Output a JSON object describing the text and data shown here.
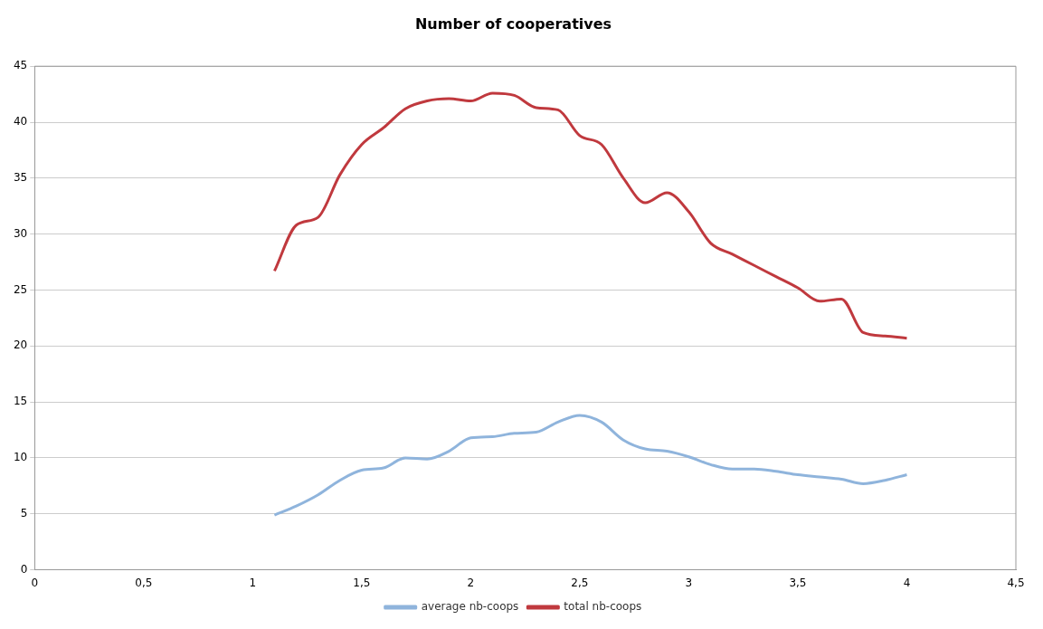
{
  "chart_data": {
    "type": "line",
    "title": "Number of cooperatives",
    "x": [
      1.1,
      1.2,
      1.3,
      1.4,
      1.5,
      1.6,
      1.7,
      1.8,
      1.9,
      2.0,
      2.1,
      2.2,
      2.3,
      2.4,
      2.5,
      2.6,
      2.7,
      2.8,
      2.9,
      3.0,
      3.1,
      3.2,
      3.3,
      3.4,
      3.5,
      3.6,
      3.7,
      3.8,
      3.9,
      4.0
    ],
    "series": [
      {
        "name": "average nb-coops",
        "color": "#8fb4dc",
        "values": [
          4.9,
          5.7,
          6.7,
          8,
          8.9,
          9.1,
          10,
          9.9,
          10.6,
          11.8,
          11.9,
          12.2,
          12.3,
          13.2,
          13.8,
          13.2,
          11.6,
          10.8,
          10.6,
          10.1,
          9.4,
          9,
          9,
          8.8,
          8.5,
          8.3,
          8.1,
          7.7,
          8,
          8.5
        ]
      },
      {
        "name": "total nb-coops",
        "color": "#c0393e",
        "values": [
          26.7,
          30.8,
          31.5,
          35.3,
          38,
          39.5,
          41.2,
          41.9,
          42.1,
          41.9,
          42.6,
          42.4,
          41.3,
          41.1,
          38.8,
          38,
          35,
          32.8,
          33.7,
          32,
          29.2,
          28.2,
          27.2,
          26.2,
          25.2,
          24,
          24.2,
          21.2,
          20.9,
          20.7
        ]
      }
    ],
    "xlim": [
      0,
      4.5
    ],
    "xticks": [
      0,
      {
        "value": 0.5,
        "label": "0,5"
      },
      1,
      {
        "value": 1.5,
        "label": "1,5"
      },
      2,
      {
        "value": 2.5,
        "label": "2,5"
      },
      3,
      {
        "value": 3.5,
        "label": "3,5"
      },
      4,
      {
        "value": 4.5,
        "label": "4,5"
      }
    ],
    "ylim": [
      0,
      45
    ],
    "yticks": [
      0,
      5,
      10,
      15,
      20,
      25,
      30,
      35,
      40,
      45
    ],
    "grid": "y",
    "legend": "bottom",
    "marker": "none",
    "line_style": "solid"
  }
}
